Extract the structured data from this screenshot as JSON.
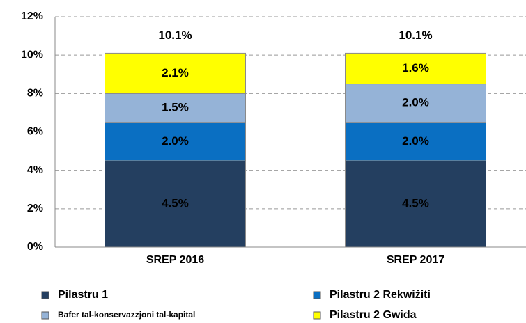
{
  "chart_data": {
    "type": "stacked_bar",
    "categories": [
      "SREP 2016",
      "SREP 2017"
    ],
    "series": [
      {
        "name": "Pilastru 1",
        "color": "#243f60",
        "values": [
          4.5,
          4.5
        ],
        "value_labels": [
          "4.5%",
          "4.5%"
        ]
      },
      {
        "name": "Pilastru 2 Rekwiżiti",
        "color": "#0a6fc2",
        "values": [
          2.0,
          2.0
        ],
        "value_labels": [
          "2.0%",
          "2.0%"
        ]
      },
      {
        "name": "Bafer tal-konservazzjoni tal-kapital",
        "color": "#95b3d7",
        "values": [
          1.5,
          2.0
        ],
        "value_labels": [
          "1.5%",
          "2.0%"
        ]
      },
      {
        "name": "Pilastru 2 Gwida",
        "color": "#ffff00",
        "values": [
          2.1,
          1.6
        ],
        "value_labels": [
          "2.1%",
          "1.6%"
        ]
      }
    ],
    "totals": [
      10.1,
      10.1
    ],
    "total_labels": [
      "10.1%",
      "10.1%"
    ],
    "ylim": [
      0,
      12
    ],
    "yticks": [
      {
        "value": 0,
        "label": "0%"
      },
      {
        "value": 2,
        "label": "2%"
      },
      {
        "value": 4,
        "label": "4%"
      },
      {
        "value": 6,
        "label": "6%"
      },
      {
        "value": 8,
        "label": "8%"
      },
      {
        "value": 10,
        "label": "10%"
      },
      {
        "value": 12,
        "label": "12%"
      }
    ],
    "grid": true
  }
}
